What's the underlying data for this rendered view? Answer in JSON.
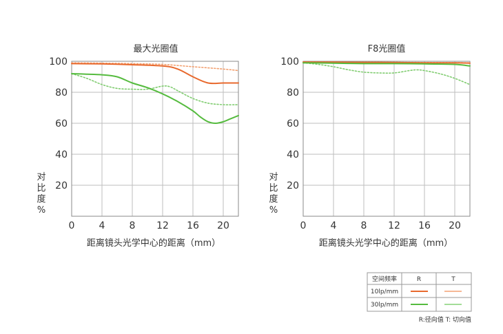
{
  "chart_data": [
    {
      "type": "line",
      "title": "最大光圈值",
      "xlabel": "距离镜头光学中心的距离（mm）",
      "ylabel": "对比度%",
      "xlim": [
        0,
        22
      ],
      "ylim": [
        0,
        100
      ],
      "xticks": [
        "0",
        "4",
        "8",
        "12",
        "16",
        "20"
      ],
      "yticks": [
        "100",
        "80",
        "60",
        "40",
        "20"
      ],
      "grid": true,
      "series": [
        {
          "name": "10lp/mm R",
          "color": "#e8692d",
          "style": "solid",
          "x": [
            0,
            4,
            8,
            12,
            14,
            16,
            18,
            20,
            22
          ],
          "y": [
            98.5,
            98.3,
            97.8,
            97,
            95,
            90,
            86,
            86,
            86
          ]
        },
        {
          "name": "10lp/mm T",
          "color": "#f2a070",
          "style": "dotted",
          "x": [
            0,
            4,
            8,
            12,
            16,
            20,
            22
          ],
          "y": [
            99,
            98.8,
            98.5,
            98,
            96.5,
            95,
            94
          ]
        },
        {
          "name": "30lp/mm R",
          "color": "#55bb3e",
          "style": "solid",
          "x": [
            0,
            2,
            4,
            6,
            8,
            10,
            12,
            14,
            16,
            17,
            18,
            19,
            20,
            21,
            22
          ],
          "y": [
            92,
            91.7,
            91.3,
            90,
            86,
            83,
            79,
            74,
            68,
            64,
            61,
            60,
            61,
            63,
            65
          ]
        },
        {
          "name": "30lp/mm T",
          "color": "#80cc70",
          "style": "dotted",
          "x": [
            0,
            2,
            4,
            6,
            8,
            10,
            12,
            13,
            14,
            16,
            18,
            20,
            22
          ],
          "y": [
            92,
            89,
            85,
            82.5,
            82,
            82,
            84,
            83.5,
            81,
            76,
            73,
            72,
            72
          ]
        }
      ]
    },
    {
      "type": "line",
      "title": "F8光圈值",
      "xlabel": "距离镜头光学中心的距离（mm）",
      "ylabel": "对比度%",
      "xlim": [
        0,
        22
      ],
      "ylim": [
        0,
        100
      ],
      "xticks": [
        "0",
        "4",
        "8",
        "12",
        "16",
        "20"
      ],
      "yticks": [
        "100",
        "80",
        "60",
        "40",
        "20"
      ],
      "grid": true,
      "series": [
        {
          "name": "10lp/mm R",
          "color": "#e8692d",
          "style": "solid",
          "x": [
            0,
            4,
            8,
            12,
            16,
            20,
            22
          ],
          "y": [
            99.5,
            99.4,
            99.3,
            99.2,
            99,
            99,
            98.8
          ]
        },
        {
          "name": "10lp/mm T",
          "color": "#f2a070",
          "style": "dotted",
          "x": [
            0,
            4,
            8,
            12,
            16,
            20,
            22
          ],
          "y": [
            99.6,
            99.5,
            99.4,
            99.3,
            99.2,
            99.1,
            99
          ]
        },
        {
          "name": "30lp/mm R",
          "color": "#55bb3e",
          "style": "solid",
          "x": [
            0,
            4,
            8,
            12,
            16,
            20,
            22
          ],
          "y": [
            99,
            98.8,
            98.5,
            98.5,
            98.3,
            98,
            97
          ]
        },
        {
          "name": "30lp/mm T",
          "color": "#80cc70",
          "style": "dotted",
          "x": [
            0,
            2,
            4,
            6,
            8,
            10,
            12,
            14,
            15,
            16,
            18,
            20,
            22
          ],
          "y": [
            99,
            98,
            96.5,
            94.5,
            93,
            92.5,
            92.5,
            94,
            94.5,
            94,
            92,
            89,
            85
          ]
        }
      ]
    }
  ],
  "legend": {
    "header": "空间频率",
    "col_r": "R",
    "col_t": "T",
    "rows": [
      {
        "label": "10lp/mm",
        "color_r": "#e8692d",
        "color_t": "#f6b895"
      },
      {
        "label": "30lp/mm",
        "color_r": "#55bb3e",
        "color_t": "#a3dc98"
      }
    ],
    "note": "R:径向值 T: 切向值"
  }
}
